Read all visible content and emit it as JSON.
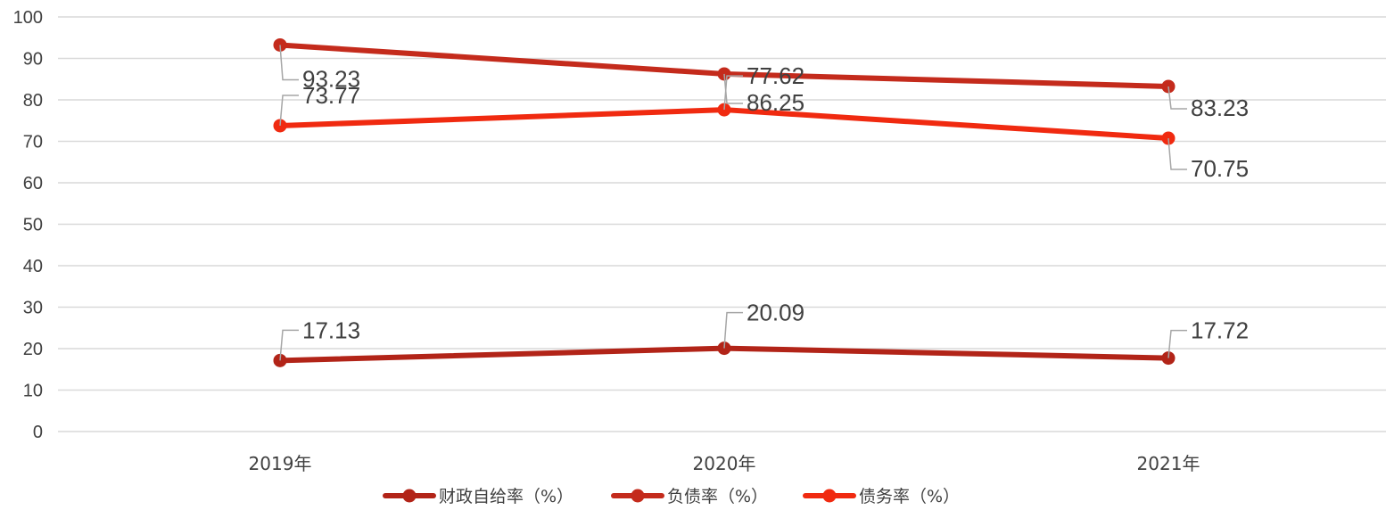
{
  "chart_data": {
    "type": "line",
    "title": "",
    "xlabel": "",
    "ylabel": "",
    "ylim": [
      0,
      100
    ],
    "yticks": [
      0,
      10,
      20,
      30,
      40,
      50,
      60,
      70,
      80,
      90,
      100
    ],
    "grid": "horizontal",
    "legend_position": "bottom",
    "categories": [
      "2019年",
      "2020年",
      "2021年"
    ],
    "series": [
      {
        "name": "财政自给率（%）",
        "color": "#b22418",
        "values": [
          17.13,
          20.09,
          17.72
        ],
        "labels": [
          "17.13",
          "20.09",
          "17.72"
        ]
      },
      {
        "name": "负债率（%）",
        "color": "#c42b1c",
        "values": [
          93.23,
          86.25,
          83.23
        ],
        "labels": [
          "93.23",
          "86.25",
          "83.23"
        ]
      },
      {
        "name": "债务率（%）",
        "color": "#f02a10",
        "values": [
          73.77,
          77.62,
          70.75
        ],
        "labels": [
          "73.77",
          "77.62",
          "70.75"
        ]
      }
    ]
  }
}
